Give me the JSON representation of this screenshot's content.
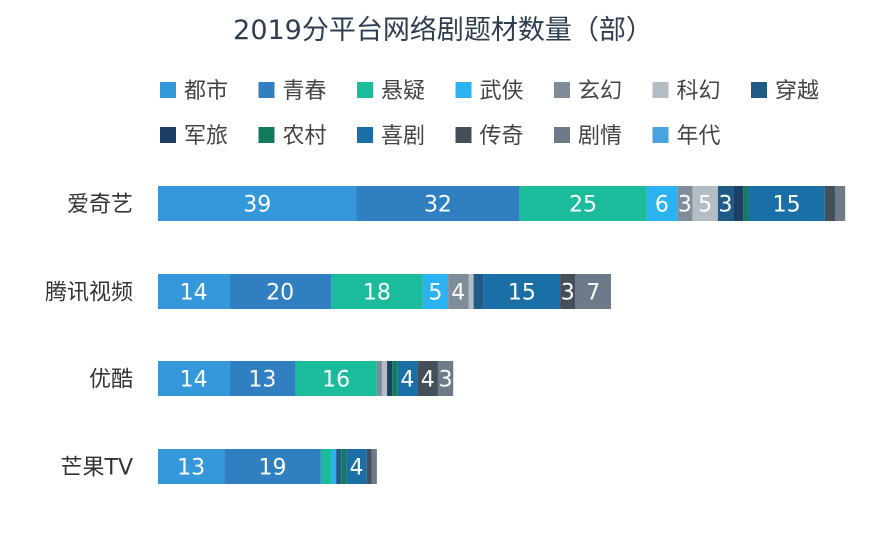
{
  "chart_data": {
    "type": "bar",
    "orientation": "horizontal",
    "stacked": true,
    "title": "2019分平台网络剧题材数量（部）",
    "categories": [
      "爱奇艺",
      "腾讯视频",
      "优酷",
      "芒果TV"
    ],
    "series": [
      {
        "name": "都市",
        "color": "#3498db",
        "values": [
          39,
          14,
          14,
          13
        ]
      },
      {
        "name": "青春",
        "color": "#2f7fc1",
        "values": [
          32,
          20,
          13,
          19
        ]
      },
      {
        "name": "悬疑",
        "color": "#1abc9c",
        "values": [
          25,
          18,
          16,
          2
        ]
      },
      {
        "name": "武侠",
        "color": "#2ab3f0",
        "values": [
          6,
          5,
          0,
          1
        ]
      },
      {
        "name": "玄幻",
        "color": "#7f8c9a",
        "values": [
          3,
          4,
          1,
          0
        ]
      },
      {
        "name": "科幻",
        "color": "#b4bcc4",
        "values": [
          5,
          1,
          1,
          0
        ]
      },
      {
        "name": "穿越",
        "color": "#1f5b86",
        "values": [
          3,
          2,
          0,
          1
        ]
      },
      {
        "name": "军旅",
        "color": "#1d3f66",
        "values": [
          2,
          0,
          1,
          0
        ]
      },
      {
        "name": "农村",
        "color": "#137a5c",
        "values": [
          1,
          0,
          1,
          1
        ]
      },
      {
        "name": "喜剧",
        "color": "#1a6fa6",
        "values": [
          15,
          15,
          4,
          4
        ]
      },
      {
        "name": "传奇",
        "color": "#454f5a",
        "values": [
          2,
          3,
          4,
          1
        ]
      },
      {
        "name": "剧情",
        "color": "#6c7a89",
        "values": [
          2,
          7,
          3,
          1
        ]
      },
      {
        "name": "年代",
        "color": "#4aa3df",
        "values": [
          0,
          0,
          0,
          0
        ]
      }
    ],
    "legend_position": "top",
    "grid": false
  }
}
